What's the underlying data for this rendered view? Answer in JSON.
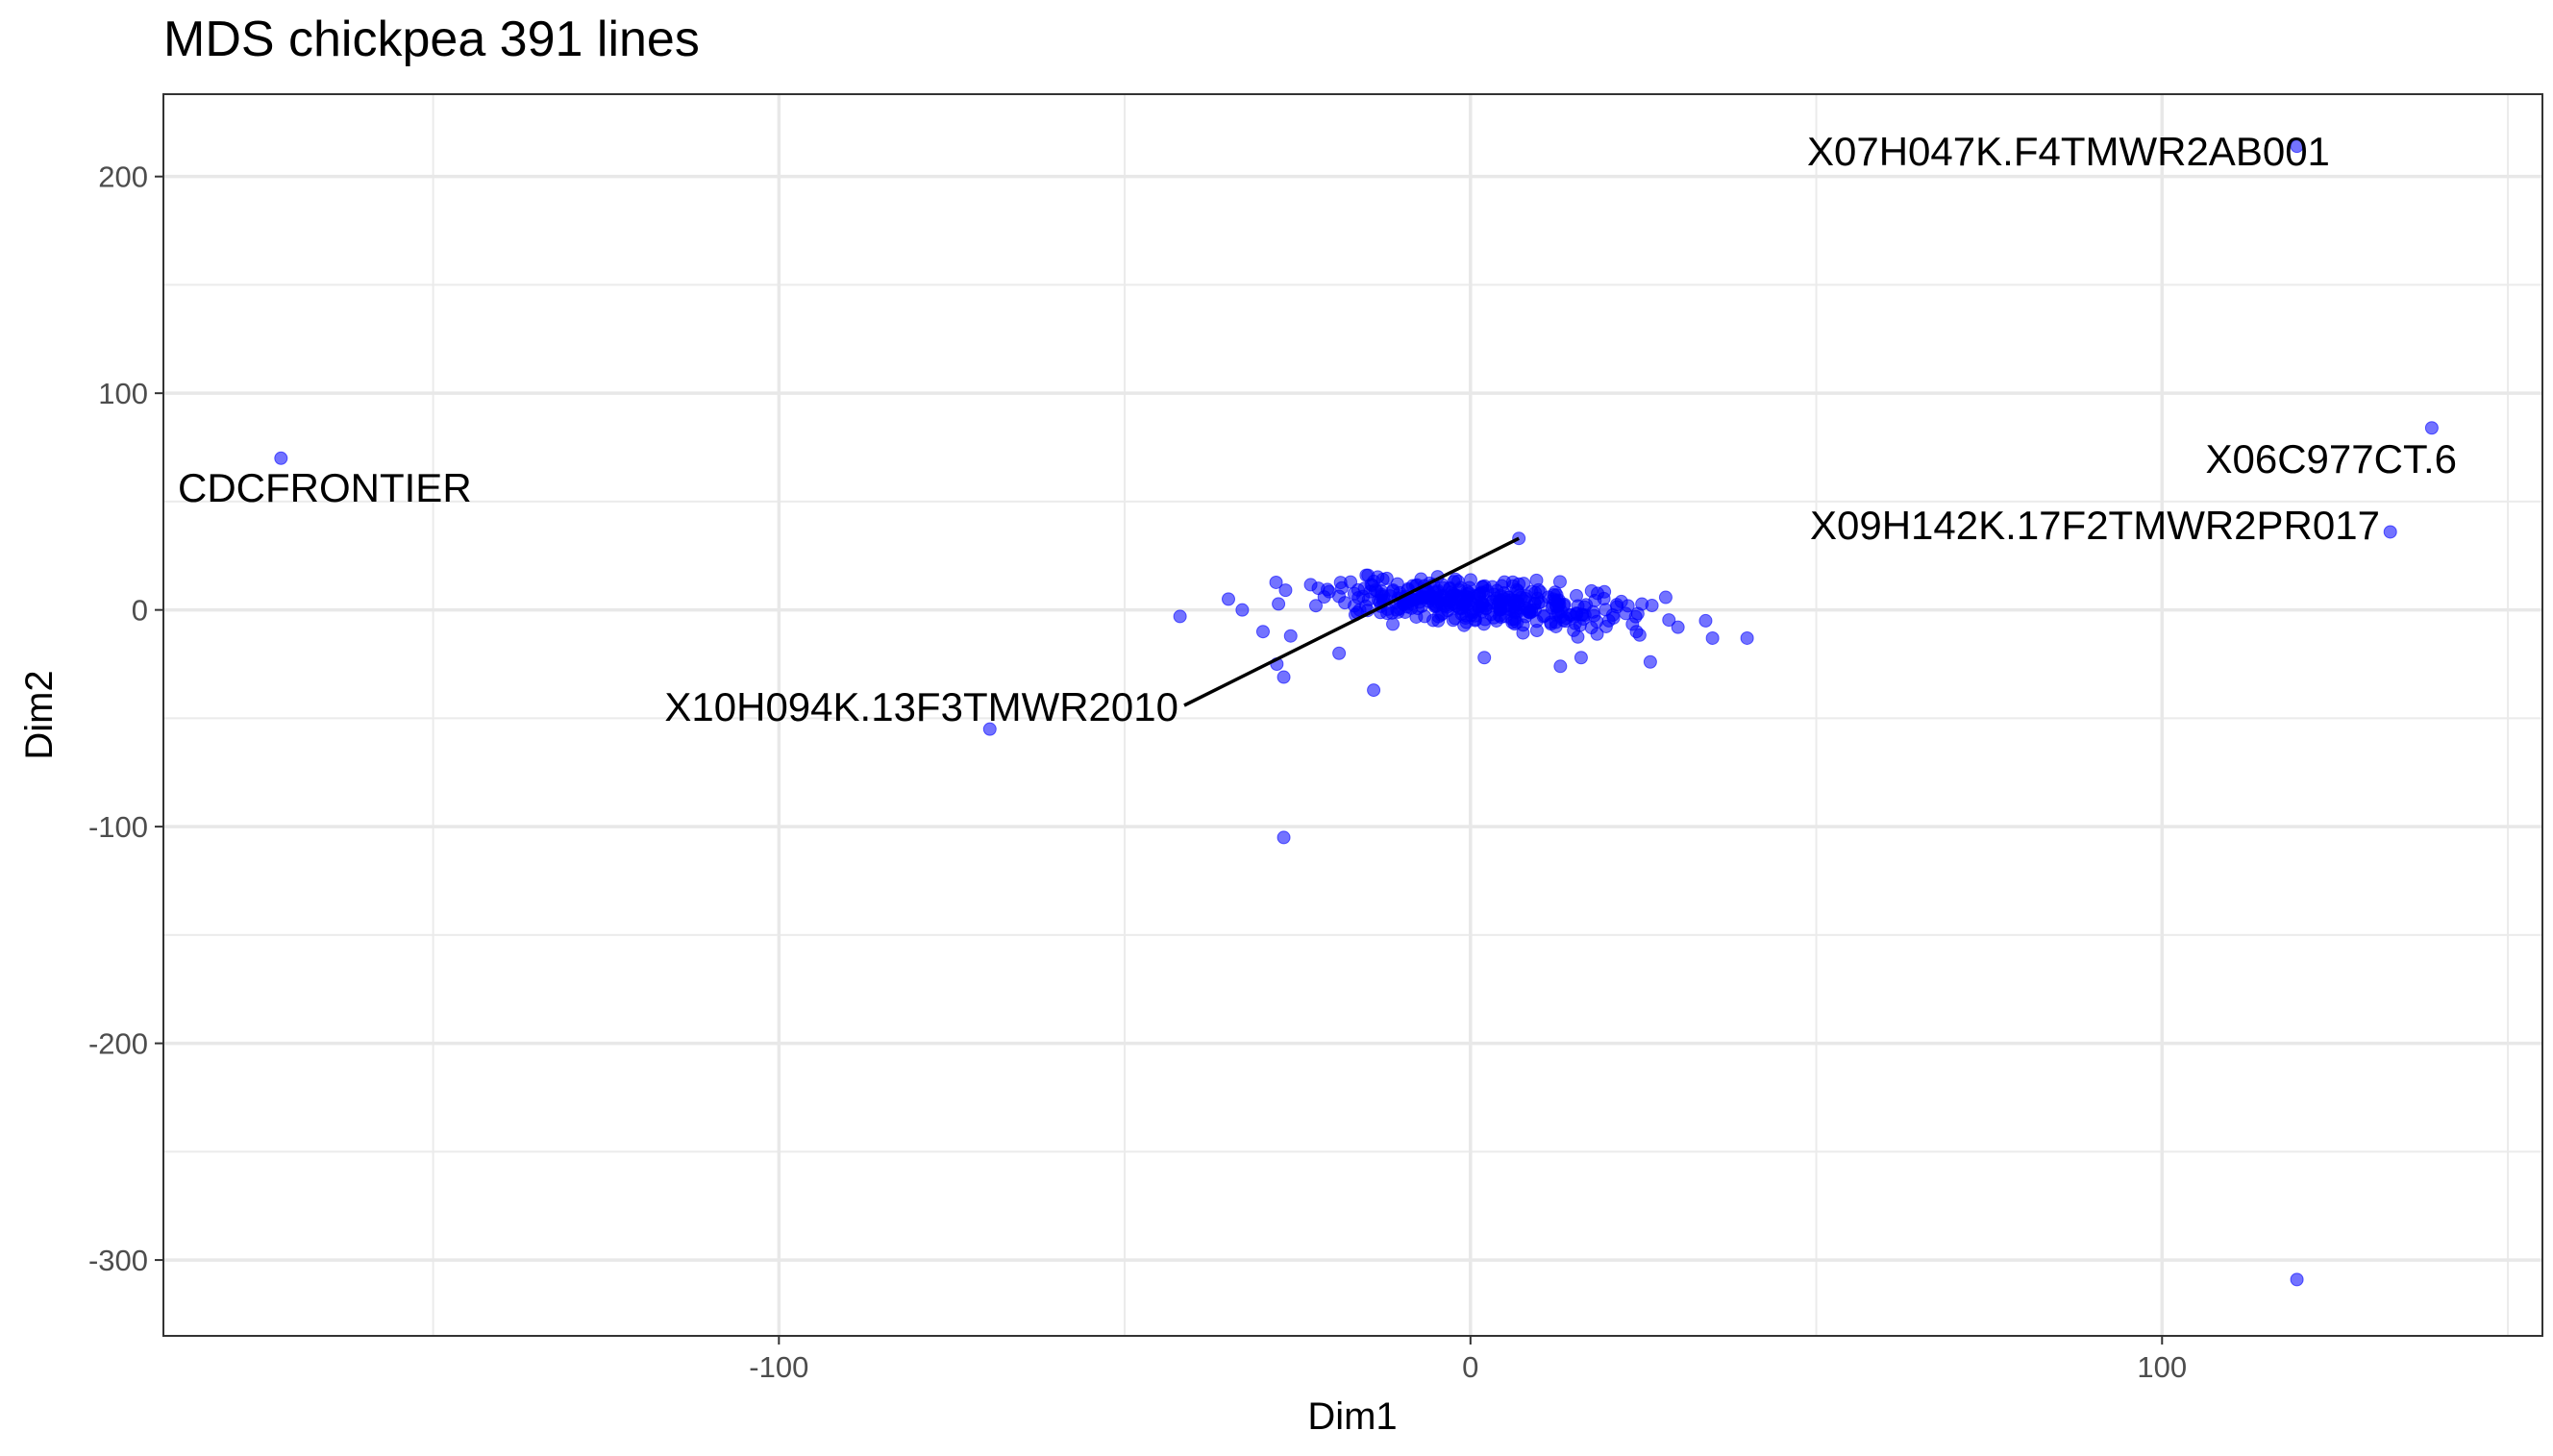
{
  "chart_data": {
    "type": "scatter",
    "title": "MDS chickpea 391 lines",
    "xlabel": "Dim1",
    "ylabel": "Dim2",
    "xlim": [
      -189,
      155
    ],
    "ylim": [
      -335,
      238
    ],
    "x_ticks": [
      -100,
      0,
      100
    ],
    "y_ticks": [
      200,
      100,
      0,
      -100,
      -200,
      -300
    ],
    "grid": true,
    "point_color": "#0000ff",
    "outliers": [
      {
        "x": -172,
        "y": 70
      },
      {
        "x": -69.5,
        "y": -55
      },
      {
        "x": -27,
        "y": -105
      },
      {
        "x": 7,
        "y": 33
      },
      {
        "x": 119.5,
        "y": 214
      },
      {
        "x": 139,
        "y": 84
      },
      {
        "x": 133,
        "y": 36
      },
      {
        "x": 119.5,
        "y": -309
      }
    ],
    "cluster": {
      "n": 383,
      "x_range": [
        -42,
        40
      ],
      "y_range": [
        -40,
        18
      ],
      "sample_points": [
        {
          "x": -42,
          "y": -3
        },
        {
          "x": -35,
          "y": 5
        },
        {
          "x": -33,
          "y": 0
        },
        {
          "x": -30,
          "y": -10
        },
        {
          "x": -28,
          "y": -25
        },
        {
          "x": -27,
          "y": -31
        },
        {
          "x": -26,
          "y": -12
        },
        {
          "x": -22,
          "y": 10
        },
        {
          "x": -19,
          "y": -20
        },
        {
          "x": -14,
          "y": -37
        },
        {
          "x": 2,
          "y": -22
        },
        {
          "x": 13,
          "y": -26
        },
        {
          "x": 16,
          "y": -22
        },
        {
          "x": 20,
          "y": -5
        },
        {
          "x": 24,
          "y": -10
        },
        {
          "x": 26,
          "y": -24
        },
        {
          "x": 30,
          "y": -8
        },
        {
          "x": 34,
          "y": -5
        },
        {
          "x": 35,
          "y": -13
        },
        {
          "x": 40,
          "y": -13
        }
      ]
    },
    "labels": [
      {
        "text": "CDCFRONTIER"
      },
      {
        "text": "X10H094K.13F3TMWR2010"
      },
      {
        "text": "X07H047K.F4TMWR2AB001"
      },
      {
        "text": "X06C977CT.6"
      },
      {
        "text": "X09H142K.17F2TMWR2PR017"
      }
    ]
  }
}
